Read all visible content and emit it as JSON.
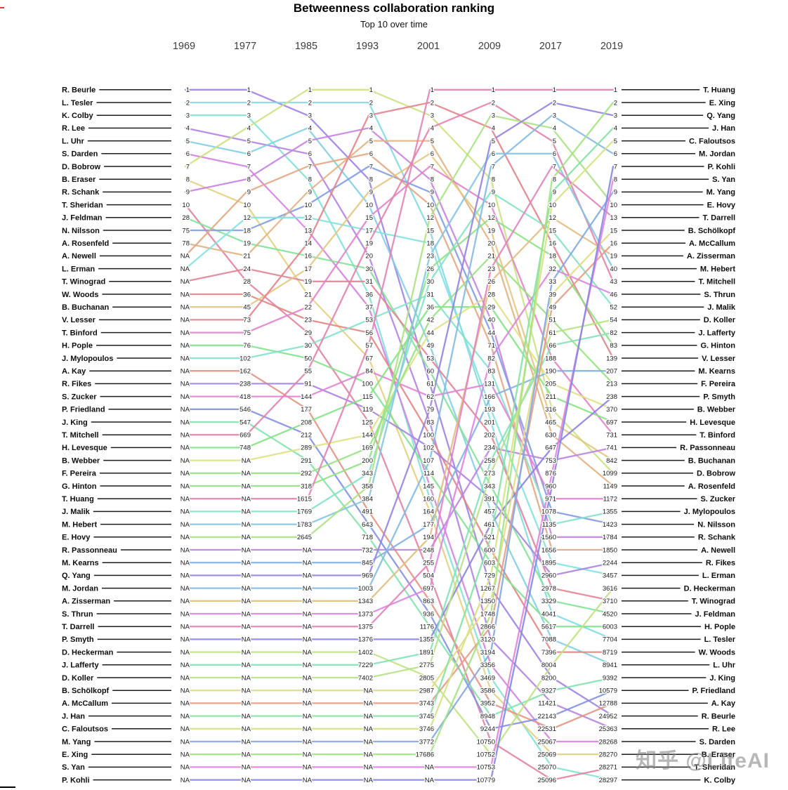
{
  "page": {
    "watermark": "知乎 @LiteAI"
  },
  "chart_data": {
    "type": "line",
    "variant": "bump-ranking",
    "title": "Betweenness collaboration ranking",
    "subtitle": "Top 10 over time",
    "years": [
      "1969",
      "1977",
      "1985",
      "1993",
      "2001",
      "2009",
      "2017",
      "2019"
    ],
    "grid": "off",
    "legend": "none",
    "palette": {
      "model": "hsl-by-alphabetical-index",
      "hue_start": 10,
      "hue_step": 6.5,
      "saturation": "62%",
      "lightness": "70%"
    },
    "left_axis_names": [
      "R. Beurle",
      "L. Tesler",
      "K. Colby",
      "R. Lee",
      "L. Uhr",
      "S. Darden",
      "D. Bobrow",
      "B. Eraser",
      "R. Schank",
      "T. Sheridan",
      "J. Feldman",
      "N. Nilsson",
      "A. Rosenfeld",
      "A. Newell",
      "L. Erman",
      "T. Winograd",
      "W. Woods",
      "B. Buchanan",
      "V. Lesser",
      "T. Binford",
      "H. Pople",
      "J. Mylopoulos",
      "A. Kay",
      "R. Fikes",
      "S. Zucker",
      "P. Friedland",
      "J. King",
      "T. Mitchell",
      "H. Levesque",
      "B. Webber",
      "F. Pereira",
      "G. Hinton",
      "T. Huang",
      "J. Malik",
      "M. Hebert",
      "E. Hovy",
      "R. Passonneau",
      "M. Kearns",
      "Q. Yang",
      "M. Jordan",
      "A. Zisserman",
      "S. Thrun",
      "T. Darrell",
      "P. Smyth",
      "D. Heckerman",
      "J. Lafferty",
      "D. Koller",
      "B. Schölkopf",
      "A. McCallum",
      "J. Han",
      "C. Faloutsos",
      "M. Yang",
      "E. Xing",
      "S. Yan",
      "P. Kohli"
    ],
    "right_axis_names": [
      "T. Huang",
      "E. Xing",
      "Q. Yang",
      "J. Han",
      "C. Faloutsos",
      "M. Jordan",
      "P. Kohli",
      "S. Yan",
      "M. Yang",
      "E. Hovy",
      "T. Darrell",
      "B. Schölkopf",
      "A. McCallum",
      "A. Zisserman",
      "M. Hebert",
      "T. Mitchell",
      "S. Thrun",
      "J. Malik",
      "D. Koller",
      "J. Lafferty",
      "G. Hinton",
      "V. Lesser",
      "M. Kearns",
      "F. Pereira",
      "P. Smyth",
      "B. Webber",
      "H. Levesque",
      "T. Binford",
      "R. Passonneau",
      "B. Buchanan",
      "D. Bobrow",
      "A. Rosenfeld",
      "S. Zucker",
      "J. Mylopoulos",
      "N. Nilsson",
      "R. Schank",
      "A. Newell",
      "R. Fikes",
      "L. Erman",
      "D. Heckerman",
      "T. Winograd",
      "J. Feldman",
      "H. Pople",
      "L. Tesler",
      "W. Woods",
      "L. Uhr",
      "J. King",
      "P. Friedland",
      "A. Kay",
      "R. Beurle",
      "R. Lee",
      "S. Darden",
      "B. Eraser",
      "T. Sheridan",
      "K. Colby"
    ],
    "columns": [
      [
        "1",
        "2",
        "3",
        "4",
        "5",
        "6",
        "7",
        "8",
        "9",
        "10",
        "28",
        "75",
        "78",
        "NA",
        "NA",
        "NA",
        "NA",
        "NA",
        "NA",
        "NA",
        "NA",
        "NA",
        "NA",
        "NA",
        "NA",
        "NA",
        "NA",
        "NA",
        "NA",
        "NA",
        "NA",
        "NA",
        "NA",
        "NA",
        "NA",
        "NA",
        "NA",
        "NA",
        "NA",
        "NA",
        "NA",
        "NA",
        "NA",
        "NA",
        "NA",
        "NA",
        "NA",
        "NA",
        "NA",
        "NA",
        "NA",
        "NA",
        "NA",
        "NA",
        "NA"
      ],
      [
        "1",
        "2",
        "3",
        "4",
        "5",
        "6",
        "7",
        "8",
        "9",
        "10",
        "12",
        "18",
        "19",
        "21",
        "24",
        "28",
        "36",
        "45",
        "73",
        "75",
        "76",
        "102",
        "162",
        "238",
        "418",
        "546",
        "547",
        "669",
        "748",
        "NA",
        "NA",
        "NA",
        "NA",
        "NA",
        "NA",
        "NA",
        "NA",
        "NA",
        "NA",
        "NA",
        "NA",
        "NA",
        "NA",
        "NA",
        "NA",
        "NA",
        "NA",
        "NA",
        "NA",
        "NA",
        "NA",
        "NA",
        "NA",
        "NA",
        "NA"
      ],
      [
        "1",
        "2",
        "3",
        "4",
        "5",
        "6",
        "7",
        "8",
        "9",
        "10",
        "12",
        "13",
        "14",
        "16",
        "17",
        "19",
        "21",
        "22",
        "23",
        "29",
        "30",
        "50",
        "55",
        "91",
        "144",
        "177",
        "208",
        "212",
        "289",
        "291",
        "292",
        "318",
        "1615",
        "1769",
        "1783",
        "2645",
        "NA",
        "NA",
        "NA",
        "NA",
        "NA",
        "NA",
        "NA",
        "NA",
        "NA",
        "NA",
        "NA",
        "NA",
        "NA",
        "NA",
        "NA",
        "NA",
        "NA",
        "NA",
        "NA"
      ],
      [
        "1",
        "2",
        "3",
        "4",
        "5",
        "6",
        "7",
        "8",
        "9",
        "10",
        "15",
        "17",
        "19",
        "20",
        "30",
        "31",
        "36",
        "37",
        "53",
        "56",
        "57",
        "67",
        "84",
        "100",
        "115",
        "119",
        "125",
        "144",
        "169",
        "200",
        "343",
        "358",
        "384",
        "491",
        "643",
        "718",
        "732",
        "845",
        "969",
        "1003",
        "1343",
        "1373",
        "1375",
        "1376",
        "1402",
        "7229",
        "7402",
        "NA",
        "NA",
        "NA",
        "NA",
        "NA",
        "NA",
        "NA",
        "NA"
      ],
      [
        "1",
        "2",
        "3",
        "4",
        "5",
        "6",
        "7",
        "8",
        "9",
        "10",
        "12",
        "15",
        "18",
        "23",
        "26",
        "30",
        "31",
        "36",
        "42",
        "44",
        "49",
        "53",
        "60",
        "61",
        "62",
        "79",
        "83",
        "100",
        "102",
        "107",
        "114",
        "145",
        "160",
        "164",
        "177",
        "194",
        "248",
        "255",
        "504",
        "697",
        "863",
        "936",
        "1176",
        "1355",
        "1891",
        "2775",
        "2805",
        "2987",
        "3743",
        "3745",
        "3746",
        "3772",
        "17686",
        "NA",
        "NA"
      ],
      [
        "1",
        "2",
        "3",
        "4",
        "5",
        "6",
        "7",
        "8",
        "9",
        "10",
        "12",
        "19",
        "20",
        "21",
        "23",
        "26",
        "28",
        "29",
        "40",
        "44",
        "71",
        "82",
        "83",
        "131",
        "166",
        "193",
        "201",
        "202",
        "234",
        "258",
        "273",
        "343",
        "391",
        "457",
        "461",
        "521",
        "600",
        "603",
        "729",
        "1267",
        "1350",
        "1748",
        "2866",
        "3120",
        "3194",
        "3356",
        "3469",
        "3586",
        "3952",
        "8948",
        "9244",
        "10750",
        "10752",
        "10753",
        "10779"
      ],
      [
        "1",
        "2",
        "3",
        "4",
        "5",
        "6",
        "7",
        "8",
        "9",
        "10",
        "12",
        "15",
        "16",
        "18",
        "32",
        "33",
        "39",
        "49",
        "51",
        "61",
        "66",
        "188",
        "190",
        "205",
        "211",
        "316",
        "465",
        "630",
        "647",
        "753",
        "876",
        "960",
        "971",
        "1078",
        "1135",
        "1560",
        "1656",
        "1895",
        "2960",
        "2978",
        "3329",
        "4041",
        "5617",
        "7088",
        "7396",
        "8004",
        "8200",
        "9327",
        "11421",
        "22143",
        "22531",
        "25067",
        "25069",
        "25070",
        "25096"
      ],
      [
        "1",
        "2",
        "3",
        "4",
        "5",
        "6",
        "7",
        "8",
        "9",
        "10",
        "13",
        "15",
        "16",
        "19",
        "40",
        "43",
        "46",
        "52",
        "54",
        "82",
        "83",
        "139",
        "207",
        "213",
        "238",
        "370",
        "697",
        "731",
        "741",
        "842",
        "1099",
        "1149",
        "1172",
        "1355",
        "1423",
        "1784",
        "1850",
        "2244",
        "3457",
        "3616",
        "3710",
        "4520",
        "6003",
        "7704",
        "8719",
        "8941",
        "9392",
        "10579",
        "12788",
        "24952",
        "25363",
        "28268",
        "28270",
        "28271",
        "28297"
      ]
    ]
  }
}
